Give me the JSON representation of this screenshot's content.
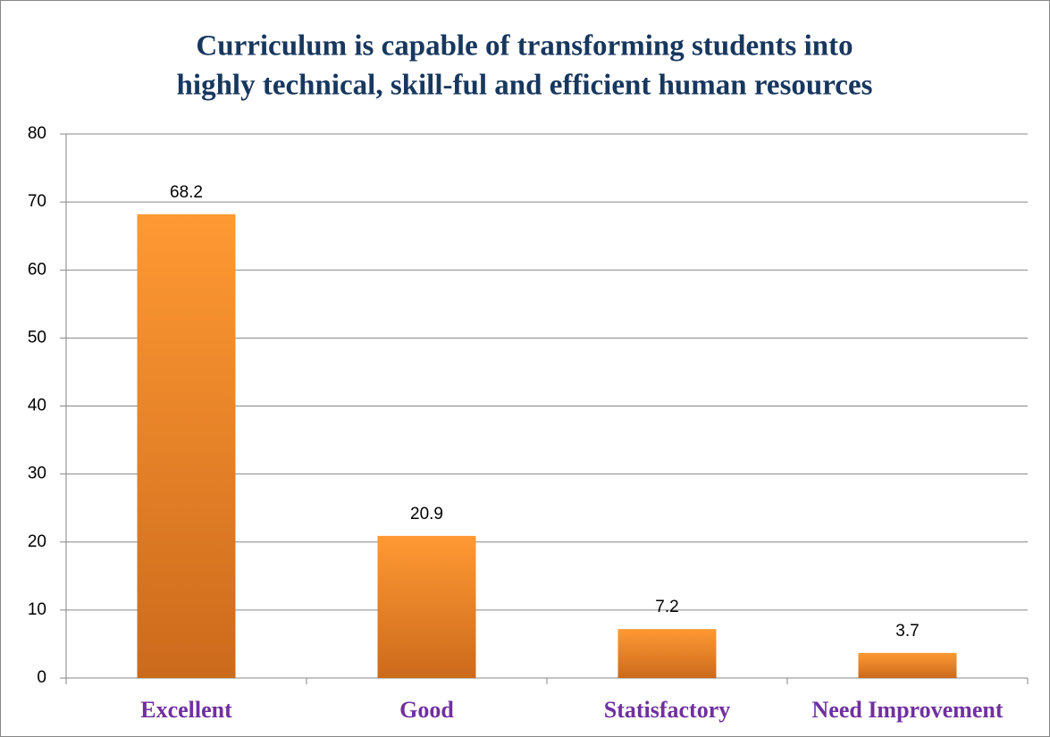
{
  "chart_data": {
    "type": "bar",
    "title": [
      "Curriculum is capable of transforming students into",
      "highly technical, skill-ful and efficient human resources"
    ],
    "categories": [
      "Excellent",
      "Good",
      "Statisfactory",
      "Need Improvement"
    ],
    "values": [
      68.2,
      20.9,
      7.2,
      3.7
    ],
    "color": "#f0841f",
    "ylim": [
      0,
      80
    ],
    "yticks": [
      0,
      10,
      20,
      30,
      40,
      50,
      60,
      70,
      80
    ],
    "grid": true
  }
}
